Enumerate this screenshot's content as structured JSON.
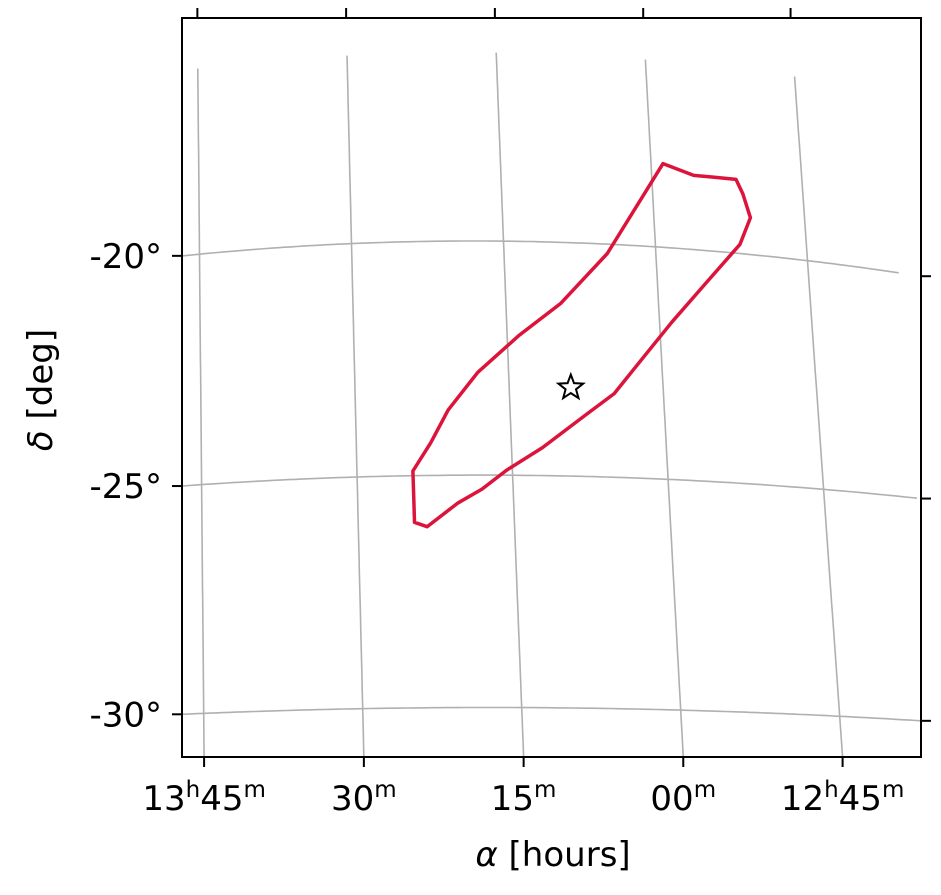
{
  "chart_data": {
    "type": "line",
    "projection": "sky map (RA / Dec, curved graticule)",
    "xlabel": "[hours]",
    "xlabel_symbol": "α",
    "ylabel": "[deg]",
    "ylabel_symbol": "δ",
    "x_ticks": [
      {
        "value": 13.75,
        "h": "13",
        "m": "45",
        "label": "13h45m"
      },
      {
        "value": 13.5,
        "h": "",
        "m": "30",
        "label": "30m"
      },
      {
        "value": 13.25,
        "h": "",
        "m": "15",
        "label": "15m"
      },
      {
        "value": 13.0,
        "h": "",
        "m": "00",
        "label": "00m"
      },
      {
        "value": 12.75,
        "h": "12",
        "m": "45",
        "label": "12h45m"
      }
    ],
    "y_ticks": [
      {
        "value": -20,
        "label": "-20°"
      },
      {
        "value": -25,
        "label": "-25°"
      },
      {
        "value": -30,
        "label": "-30°"
      }
    ],
    "grid": true,
    "series": [
      {
        "kind": "contour",
        "color": "#dc143c",
        "points": [
          [
            12.98,
            -18.2
          ],
          [
            12.93,
            -18.4
          ],
          [
            12.9,
            -18.4
          ],
          [
            12.86,
            -18.4
          ],
          [
            12.85,
            -18.7
          ],
          [
            12.84,
            -19.2
          ],
          [
            12.86,
            -19.8
          ],
          [
            12.92,
            -20.7
          ],
          [
            12.98,
            -21.6
          ],
          [
            13.03,
            -22.4
          ],
          [
            13.08,
            -23.2
          ],
          [
            13.13,
            -23.7
          ],
          [
            13.2,
            -24.4
          ],
          [
            13.26,
            -24.9
          ],
          [
            13.3,
            -25.3
          ],
          [
            13.34,
            -25.6
          ],
          [
            13.39,
            -26.1
          ],
          [
            13.41,
            -26.0
          ],
          [
            13.41,
            -25.5
          ],
          [
            13.41,
            -24.9
          ],
          [
            13.38,
            -24.3
          ],
          [
            13.35,
            -23.6
          ],
          [
            13.3,
            -22.8
          ],
          [
            13.23,
            -22.0
          ],
          [
            13.16,
            -21.3
          ],
          [
            13.08,
            -20.2
          ],
          [
            13.02,
            -19.0
          ],
          [
            12.98,
            -18.2
          ]
        ]
      }
    ],
    "markers": [
      {
        "kind": "star",
        "x": 13.15,
        "y": -23.1,
        "fill": "#ffffff",
        "stroke": "#000000"
      }
    ],
    "colors": {
      "contour": "#dc143c",
      "grid": "#b0b0b0",
      "axes": "#000000"
    }
  }
}
